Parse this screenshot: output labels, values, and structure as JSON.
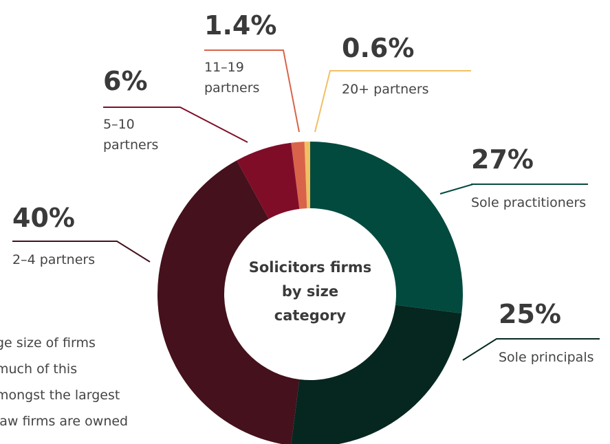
{
  "chart_data": {
    "type": "donut",
    "center_text": "Solicitors firms by size category",
    "categories": [
      "Sole practitioners",
      "Sole principals",
      "2–4 partners",
      "5–10 partners",
      "11–19 partners",
      "20+ partners"
    ],
    "values": [
      27,
      25,
      40,
      6,
      1.4,
      0.6
    ],
    "value_labels": [
      "27%",
      "25%",
      "40%",
      "6%",
      "1.4%",
      "0.6%"
    ],
    "colors": [
      "#024a3e",
      "#05271f",
      "#44111c",
      "#800d28",
      "#d9634a",
      "#f0c063"
    ]
  },
  "body_text": [
    "ge size of firms",
    "much of this",
    "mongst the largest",
    "law firms are owned"
  ]
}
